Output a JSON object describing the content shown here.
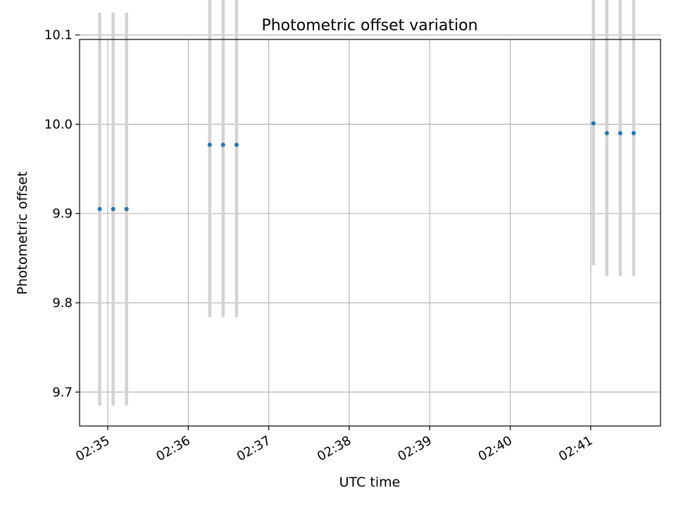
{
  "chart_data": {
    "type": "scatter",
    "title": "Photometric offset variation",
    "xlabel": "UTC time",
    "ylabel": "Photometric offset",
    "x_ticks": [
      "02:35",
      "02:36",
      "02:37",
      "02:38",
      "02:39",
      "02:40",
      "02:41"
    ],
    "xlim": [
      "02:34:39",
      "02:41:52"
    ],
    "y_ticks": [
      "9.7",
      "9.8",
      "9.9",
      "10.0",
      "10.1"
    ],
    "ylim": [
      9.662,
      10.095
    ],
    "grid": true,
    "marker_color": "#1f77b4",
    "errorbar_color": "#d3d3d3",
    "points": [
      {
        "x": "02:34:54",
        "y": 9.905,
        "err_low": 9.685,
        "err_high": 10.125
      },
      {
        "x": "02:35:04",
        "y": 9.905,
        "err_low": 9.685,
        "err_high": 10.125
      },
      {
        "x": "02:35:14",
        "y": 9.905,
        "err_low": 9.685,
        "err_high": 10.125
      },
      {
        "x": "02:36:16",
        "y": 9.977,
        "err_low": 9.784,
        "err_high": 10.17
      },
      {
        "x": "02:36:26",
        "y": 9.977,
        "err_low": 9.784,
        "err_high": 10.17
      },
      {
        "x": "02:36:36",
        "y": 9.977,
        "err_low": 9.784,
        "err_high": 10.17
      },
      {
        "x": "02:41:02",
        "y": 10.001,
        "err_low": 9.842,
        "err_high": 10.16
      },
      {
        "x": "02:41:12",
        "y": 9.99,
        "err_low": 9.83,
        "err_high": 10.15
      },
      {
        "x": "02:41:22",
        "y": 9.99,
        "err_low": 9.83,
        "err_high": 10.15
      },
      {
        "x": "02:41:32",
        "y": 9.99,
        "err_low": 9.83,
        "err_high": 10.15
      }
    ]
  }
}
